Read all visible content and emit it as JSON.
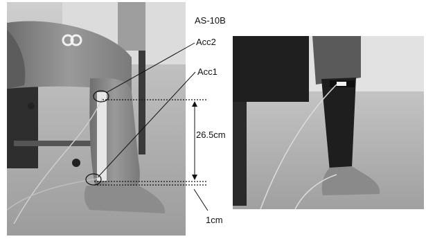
{
  "figure": {
    "left_photo": {
      "description_name": "seated leg with two accelerometers on shin tape"
    },
    "right_photo": {
      "description_name": "leg wearing sensor sleeve"
    },
    "labels": {
      "sensor": "AS-10B",
      "acc2": "Acc2",
      "acc1": "Acc1",
      "distance": "26.5cm",
      "offset": "1cm"
    }
  },
  "colors": {
    "background": "#ffffff",
    "photo_floor": "#a9a9a9",
    "skin": "#8a8a8a",
    "sleeve": "#1e1e1e",
    "lines": "#111111"
  }
}
